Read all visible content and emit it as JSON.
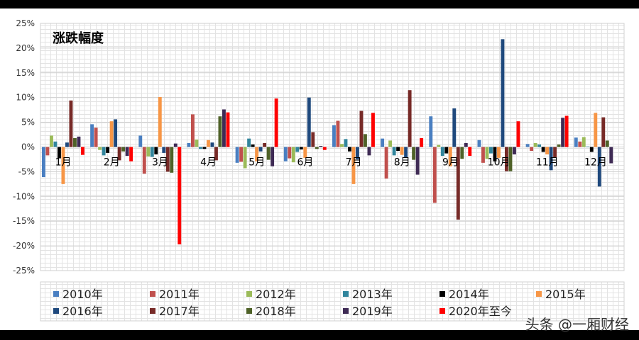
{
  "chart_data": {
    "type": "bar",
    "title": "涨跌幅度",
    "categories": [
      "1月",
      "2月",
      "3月",
      "4月",
      "5月",
      "6月",
      "7月",
      "8月",
      "9月",
      "10月",
      "11月",
      "12月"
    ],
    "y_ticks": [
      "25%",
      "20%",
      "15%",
      "10%",
      "5%",
      "0%",
      "-5%",
      "-10%",
      "-15%",
      "-20%",
      "-25%"
    ],
    "ylim": [
      -25,
      25
    ],
    "grid": true,
    "legend_position": "bottom",
    "series": [
      {
        "name": "2010年",
        "color": "#4a7fc1",
        "values": [
          -6.1,
          4.6,
          2.3,
          0.8,
          -3.2,
          -2.9,
          4.4,
          1.7,
          6.2,
          1.4,
          0.6,
          1.9
        ]
      },
      {
        "name": "2011年",
        "color": "#c0504d",
        "values": [
          -1.7,
          3.9,
          -5.4,
          6.6,
          -3.0,
          -2.3,
          5.3,
          -6.4,
          -11.3,
          -3.2,
          -0.8,
          1.1
        ]
      },
      {
        "name": "2012年",
        "color": "#9bbb59",
        "values": [
          2.3,
          -0.6,
          -1.9,
          1.5,
          -4.3,
          -3.1,
          0.6,
          1.3,
          0.4,
          -2.4,
          0.8,
          2.0
        ]
      },
      {
        "name": "2013年",
        "color": "#31859c",
        "values": [
          1.1,
          -1.7,
          -2.0,
          -0.4,
          1.7,
          -1.0,
          1.6,
          -1.7,
          -1.8,
          -1.3,
          0.5,
          0.1
        ]
      },
      {
        "name": "2014年",
        "color": "#000000",
        "values": [
          -2.3,
          -1.2,
          -1.5,
          -0.4,
          0.5,
          -0.5,
          -0.9,
          -0.8,
          -1.3,
          -2.9,
          -1.0,
          -1.0
        ]
      },
      {
        "name": "2015年",
        "color": "#f79646",
        "values": [
          -7.5,
          5.2,
          10.1,
          1.4,
          -2.9,
          -2.2,
          -7.5,
          -1.6,
          -3.9,
          -2.2,
          -1.5,
          6.9
        ]
      },
      {
        "name": "2016年",
        "color": "#1f497d",
        "values": [
          0.9,
          5.6,
          -1.2,
          0.9,
          -0.9,
          10.0,
          -2.5,
          -2.2,
          7.8,
          21.8,
          -4.7,
          -8.0
        ]
      },
      {
        "name": "2017年",
        "color": "#772a27",
        "values": [
          9.4,
          -2.7,
          -5.0,
          -2.7,
          0.8,
          3.0,
          7.3,
          11.5,
          -14.7,
          -4.9,
          -2.1,
          6.0
        ]
      },
      {
        "name": "2018年",
        "color": "#4f6228",
        "values": [
          1.8,
          -0.9,
          -5.2,
          6.2,
          -2.6,
          -0.4,
          2.6,
          -2.6,
          -2.4,
          -4.9,
          0.5,
          1.3
        ]
      },
      {
        "name": "2019年",
        "color": "#3f2b55",
        "values": [
          2.1,
          -1.8,
          0.7,
          7.6,
          -3.9,
          0.2,
          -1.7,
          -5.6,
          0.8,
          -1.5,
          5.9,
          -3.3
        ]
      },
      {
        "name": "2020年至今",
        "color": "#ff0000",
        "values": [
          -1.6,
          -2.9,
          -19.7,
          7.0,
          9.8,
          -0.6,
          6.9,
          1.8,
          -1.8,
          5.2,
          6.3,
          null
        ]
      }
    ]
  },
  "watermark": "头条 @一厢财经"
}
